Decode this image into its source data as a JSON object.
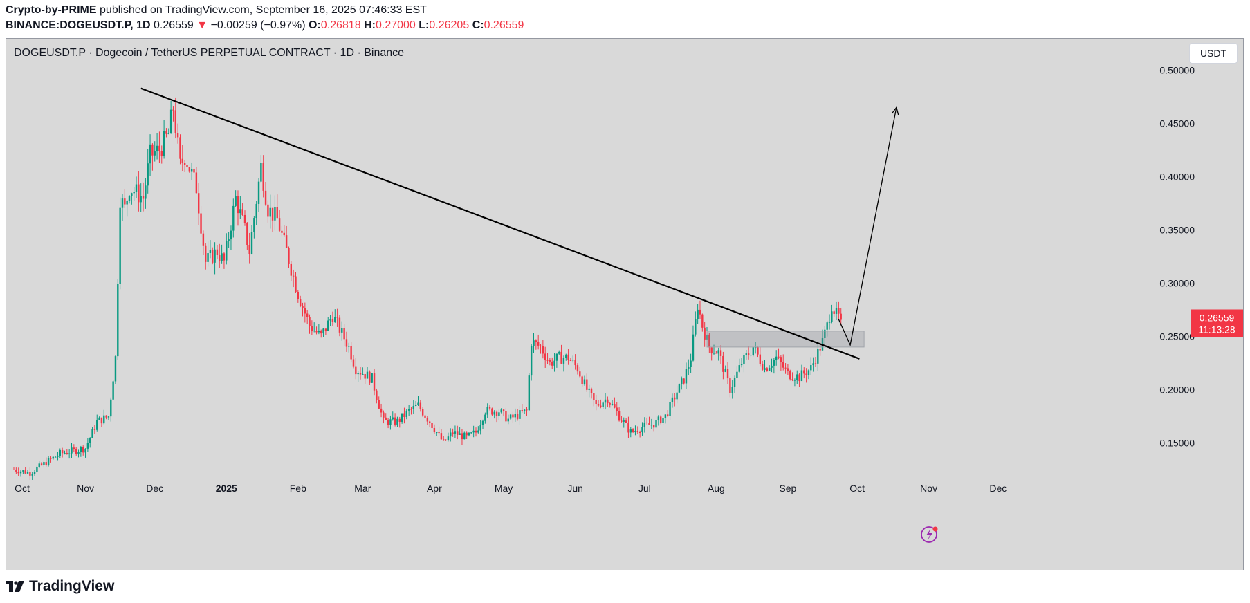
{
  "header": {
    "author": "Crypto-by-PRIME",
    "published_text": "published on TradingView.com, September 16, 2025 07:46:33 EST",
    "symbol_line": "BINANCE:DOGEUSDT.P, 1D",
    "last": "0.26559",
    "change_arrow": "▼",
    "change": "−0.00259 (−0.97%)",
    "o_label": "O:",
    "o": "0.26818",
    "h_label": "H:",
    "h": "0.27000",
    "l_label": "L:",
    "l": "0.26205",
    "c_label": "C:",
    "c": "0.26559"
  },
  "legend": "DOGEUSDT.P · Dogecoin / TetherUS PERPETUAL CONTRACT · 1D · Binance",
  "currency_button": "USDT",
  "price_label": {
    "value": "0.26559",
    "countdown": "11:13:28"
  },
  "footer": {
    "logo_text": "TradingView"
  },
  "colors": {
    "up": "#089981",
    "down": "#f23645",
    "bg": "#d9d9d9",
    "badge": "#f23645"
  },
  "chart_data": {
    "type": "candlestick",
    "title": "DOGEUSDT.P · Dogecoin / TetherUS PERPETUAL CONTRACT · 1D · Binance",
    "xlabel": "",
    "ylabel": "USDT",
    "ylim": [
      0.115,
      0.525
    ],
    "y_ticks": [
      "0.50000",
      "0.45000",
      "0.40000",
      "0.35000",
      "0.30000",
      "0.25000",
      "0.20000",
      "0.15000"
    ],
    "x_ticks": [
      "Oct",
      "Nov",
      "Dec",
      "2025",
      "Feb",
      "Mar",
      "Apr",
      "May",
      "Jun",
      "Jul",
      "Aug",
      "Sep",
      "Oct",
      "Nov",
      "Dec"
    ],
    "x_tick_days": [
      0,
      31,
      61,
      92,
      123,
      151,
      182,
      212,
      243,
      273,
      304,
      335,
      365,
      396,
      426
    ],
    "close_path": [
      [
        0,
        0.125
      ],
      [
        7,
        0.122
      ],
      [
        20,
        0.14
      ],
      [
        31,
        0.145
      ],
      [
        36,
        0.17
      ],
      [
        41,
        0.175
      ],
      [
        44,
        0.23
      ],
      [
        46,
        0.38
      ],
      [
        48,
        0.37
      ],
      [
        50,
        0.39
      ],
      [
        56,
        0.38
      ],
      [
        59,
        0.42
      ],
      [
        63,
        0.425
      ],
      [
        67,
        0.44
      ],
      [
        69,
        0.465
      ],
      [
        72,
        0.41
      ],
      [
        74,
        0.42
      ],
      [
        79,
        0.39
      ],
      [
        83,
        0.32
      ],
      [
        88,
        0.33
      ],
      [
        91,
        0.32
      ],
      [
        96,
        0.38
      ],
      [
        100,
        0.35
      ],
      [
        102,
        0.33
      ],
      [
        107,
        0.41
      ],
      [
        110,
        0.37
      ],
      [
        114,
        0.36
      ],
      [
        118,
        0.33
      ],
      [
        123,
        0.29
      ],
      [
        128,
        0.26
      ],
      [
        133,
        0.25
      ],
      [
        138,
        0.27
      ],
      [
        145,
        0.24
      ],
      [
        148,
        0.22
      ],
      [
        155,
        0.21
      ],
      [
        160,
        0.17
      ],
      [
        166,
        0.17
      ],
      [
        171,
        0.18
      ],
      [
        175,
        0.185
      ],
      [
        180,
        0.17
      ],
      [
        186,
        0.15
      ],
      [
        190,
        0.16
      ],
      [
        196,
        0.155
      ],
      [
        200,
        0.16
      ],
      [
        204,
        0.18
      ],
      [
        210,
        0.18
      ],
      [
        214,
        0.172
      ],
      [
        222,
        0.18
      ],
      [
        224,
        0.245
      ],
      [
        228,
        0.24
      ],
      [
        232,
        0.225
      ],
      [
        236,
        0.23
      ],
      [
        240,
        0.23
      ],
      [
        244,
        0.22
      ],
      [
        248,
        0.2
      ],
      [
        252,
        0.185
      ],
      [
        257,
        0.192
      ],
      [
        262,
        0.175
      ],
      [
        267,
        0.16
      ],
      [
        272,
        0.165
      ],
      [
        277,
        0.168
      ],
      [
        282,
        0.175
      ],
      [
        287,
        0.198
      ],
      [
        290,
        0.21
      ],
      [
        293,
        0.23
      ],
      [
        296,
        0.28
      ],
      [
        298,
        0.26
      ],
      [
        301,
        0.24
      ],
      [
        305,
        0.235
      ],
      [
        310,
        0.2
      ],
      [
        315,
        0.225
      ],
      [
        320,
        0.24
      ],
      [
        325,
        0.22
      ],
      [
        330,
        0.23
      ],
      [
        335,
        0.215
      ],
      [
        340,
        0.212
      ],
      [
        345,
        0.22
      ],
      [
        350,
        0.245
      ],
      [
        352,
        0.26
      ],
      [
        354,
        0.28
      ],
      [
        356,
        0.27
      ],
      [
        358,
        0.266
      ]
    ],
    "trendline": {
      "start": [
        55,
        0.483
      ],
      "end": [
        366,
        0.229
      ]
    },
    "zone": {
      "x_range": [
        300,
        368
      ],
      "y_range": [
        0.24,
        0.255
      ]
    },
    "projection": [
      [
        357,
        0.266
      ],
      [
        362,
        0.242
      ],
      [
        382,
        0.465
      ]
    ],
    "last_price": 0.26559
  }
}
